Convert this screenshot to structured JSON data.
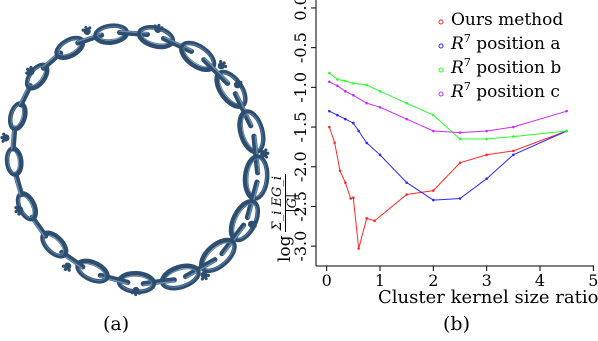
{
  "captions": {
    "left": "(a)",
    "right": "(b)"
  },
  "left_panel": {
    "image": "twisted-chain-ring-render",
    "color": "#2e4e70"
  },
  "chart_data": {
    "type": "line",
    "xlabel": "Cluster kernel size ratio",
    "ylabel_prefix": "log",
    "ylabel_numerator": "Σ_i EG_i",
    "ylabel_denominator": "|G|",
    "xlim": [
      -0.2,
      5.05
    ],
    "ylim": [
      -3.25,
      0.1
    ],
    "xticks": [
      0,
      1,
      2,
      3,
      4,
      5
    ],
    "yticks": [
      0.0,
      -0.5,
      -1.0,
      -1.5,
      -2.0,
      -2.5,
      -3.0
    ],
    "ytick_labels": [
      "0.0",
      "-0.5",
      "-1.0",
      "-1.5",
      "-2.0",
      "-2.5",
      "-3.0"
    ],
    "grid": false,
    "legend_position": "top-right",
    "series": [
      {
        "name": "Ours method",
        "color": "#ff2a2a",
        "x": [
          0.05,
          0.15,
          0.25,
          0.35,
          0.45,
          0.5,
          0.6,
          0.75,
          0.9,
          1.5,
          2.0,
          2.5,
          3.0,
          3.5,
          4.5
        ],
        "y": [
          -1.5,
          -1.7,
          -2.05,
          -2.2,
          -2.4,
          -2.39,
          -3.03,
          -2.65,
          -2.68,
          -2.35,
          -2.3,
          -1.95,
          -1.85,
          -1.8,
          -1.55
        ]
      },
      {
        "name": "R^7 position a",
        "color": "#2a2aff",
        "x": [
          0.05,
          0.2,
          0.35,
          0.5,
          0.6,
          0.75,
          1.0,
          1.5,
          2.0,
          2.5,
          3.0,
          3.5,
          4.5
        ],
        "y": [
          -1.3,
          -1.35,
          -1.4,
          -1.45,
          -1.55,
          -1.7,
          -1.85,
          -2.2,
          -2.42,
          -2.4,
          -2.15,
          -1.85,
          -1.55
        ]
      },
      {
        "name": "R^7 position b",
        "color": "#2aff2a",
        "x": [
          0.05,
          0.2,
          0.35,
          0.5,
          0.75,
          1.0,
          1.5,
          2.0,
          2.5,
          3.0,
          3.5,
          4.5
        ],
        "y": [
          -0.82,
          -0.9,
          -0.92,
          -0.95,
          -0.97,
          -1.05,
          -1.2,
          -1.35,
          -1.65,
          -1.65,
          -1.62,
          -1.55
        ]
      },
      {
        "name": "R^7 position c",
        "color": "#cc2aff",
        "x": [
          0.05,
          0.2,
          0.35,
          0.5,
          0.75,
          1.0,
          1.5,
          2.0,
          2.5,
          3.0,
          3.5,
          4.5
        ],
        "y": [
          -0.93,
          -0.98,
          -1.05,
          -1.1,
          -1.2,
          -1.25,
          -1.4,
          -1.55,
          -1.57,
          -1.55,
          -1.5,
          -1.3
        ]
      }
    ]
  }
}
